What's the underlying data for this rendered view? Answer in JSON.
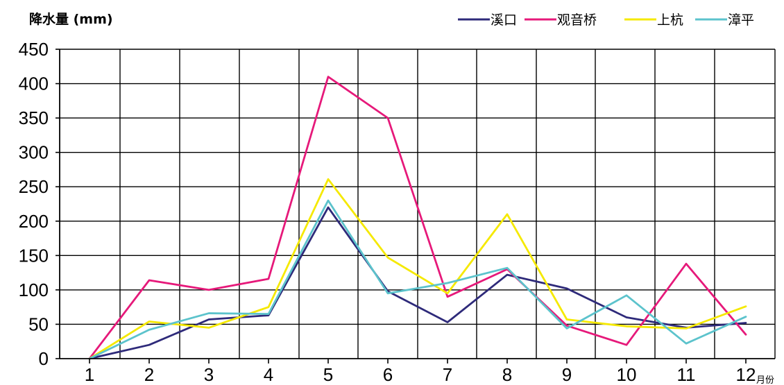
{
  "chart_data": {
    "type": "line",
    "ylabel": "降水量 (mm)",
    "xlabel": "月份",
    "categories": [
      "1",
      "2",
      "3",
      "4",
      "5",
      "6",
      "7",
      "8",
      "9",
      "10",
      "11",
      "12"
    ],
    "ylim": [
      0,
      450
    ],
    "yticks": [
      0,
      50,
      100,
      150,
      200,
      250,
      300,
      350,
      400,
      450
    ],
    "grid": true,
    "legend_position": "top-right",
    "series": [
      {
        "name": "溪口",
        "color": "#2e2a7a",
        "values": [
          0,
          20,
          57,
          63,
          220,
          98,
          53,
          122,
          102,
          60,
          45,
          52
        ]
      },
      {
        "name": "观音桥",
        "color": "#e6197a",
        "values": [
          0,
          114,
          100,
          116,
          410,
          350,
          90,
          130,
          48,
          20,
          138,
          35
        ]
      },
      {
        "name": "上杭",
        "color": "#f5e900",
        "values": [
          0,
          54,
          45,
          75,
          261,
          147,
          95,
          210,
          57,
          47,
          44,
          76
        ]
      },
      {
        "name": "漳平",
        "color": "#5cc3cc",
        "values": [
          0,
          42,
          66,
          65,
          230,
          95,
          110,
          132,
          44,
          92,
          22,
          61
        ]
      }
    ]
  }
}
